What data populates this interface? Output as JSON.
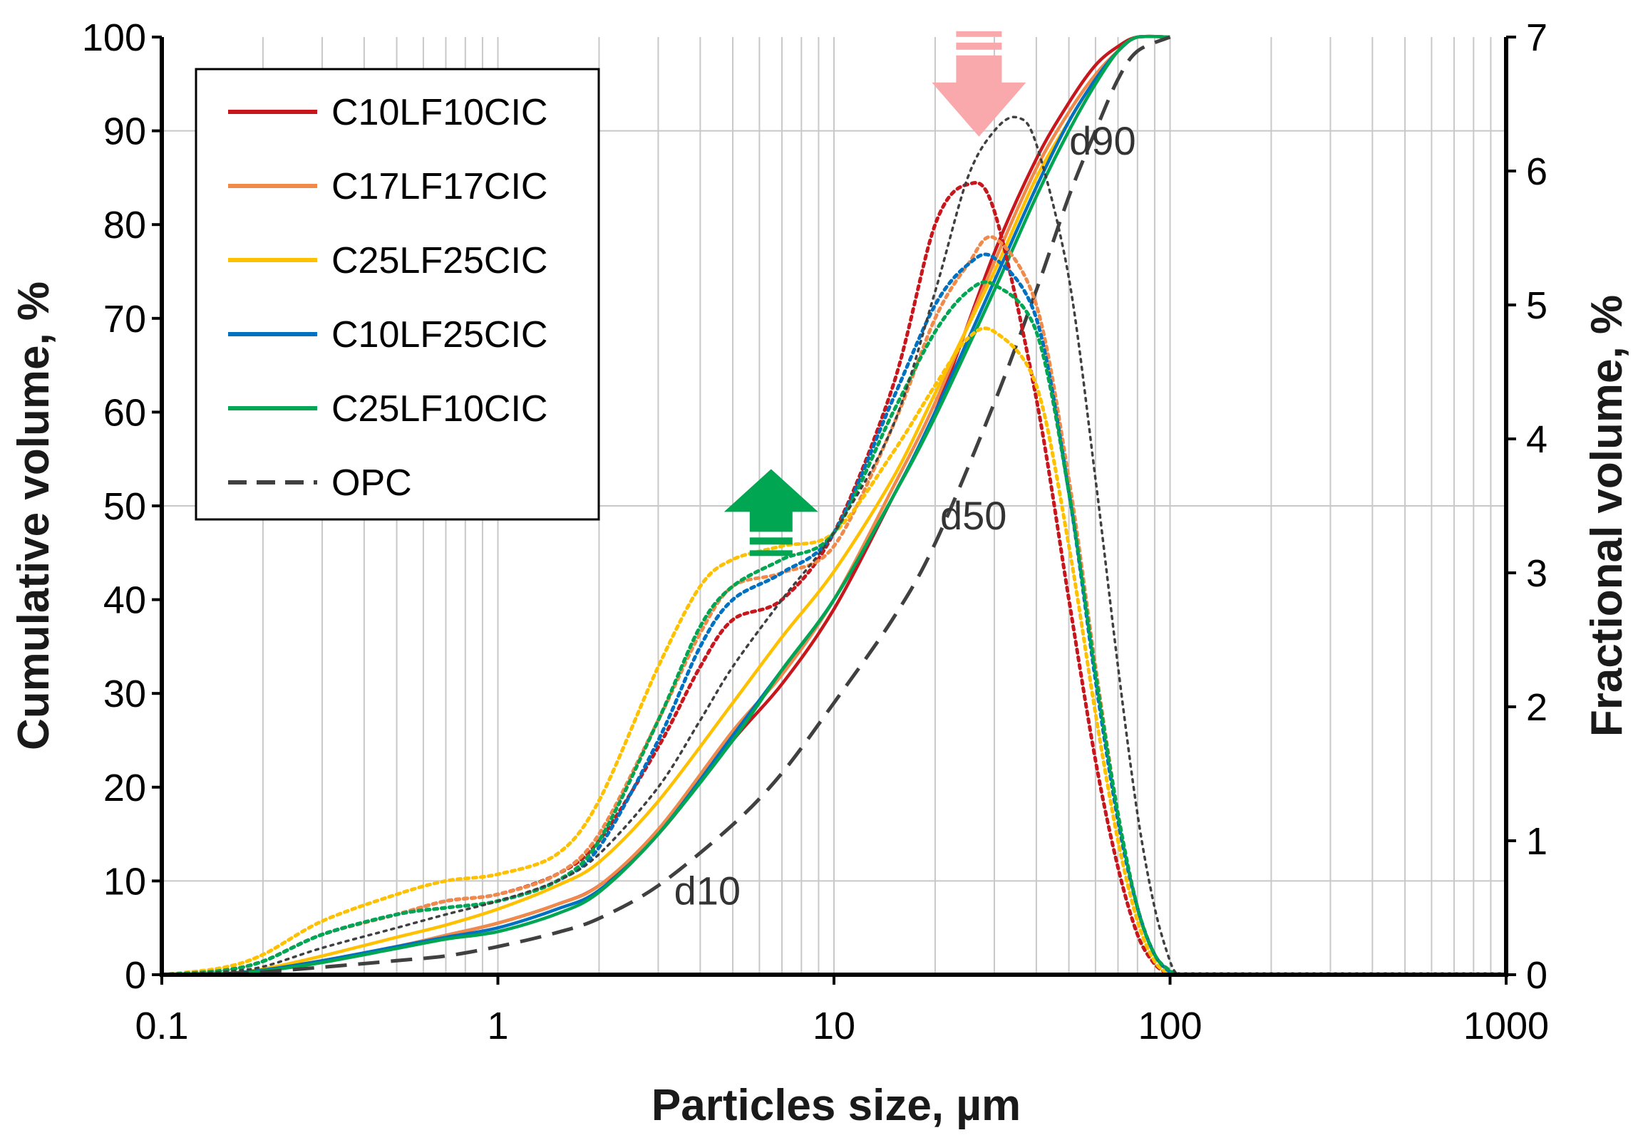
{
  "chart_data": {
    "type": "line",
    "x_scale": "log",
    "xlabel": "Particles size, µm",
    "ylabel_left": "Cumulative volume, %",
    "ylabel_right": "Fractional volume, %",
    "xlim": [
      0.1,
      1000
    ],
    "ylim_left": [
      0,
      100
    ],
    "ylim_right": [
      0,
      7
    ],
    "x_ticks": [
      0.1,
      1,
      10,
      100,
      1000
    ],
    "x_tick_labels": [
      "0.1",
      "1",
      "10",
      "100",
      "1000"
    ],
    "y_left_ticks": [
      0,
      10,
      20,
      30,
      40,
      50,
      60,
      70,
      80,
      90,
      100
    ],
    "y_left_tick_labels": [
      "0",
      "10",
      "20",
      "30",
      "40",
      "50",
      "60",
      "70",
      "80",
      "90",
      "100"
    ],
    "y_right_ticks": [
      0,
      1,
      2,
      3,
      4,
      5,
      6,
      7
    ],
    "y_right_tick_labels": [
      "0",
      "1",
      "2",
      "3",
      "4",
      "5",
      "6",
      "7"
    ],
    "legend": [
      {
        "label": "C10LF10CIC",
        "color": "#c8161d",
        "style": "solid"
      },
      {
        "label": "C17LF17CIC",
        "color": "#f08a4b",
        "style": "solid"
      },
      {
        "label": "C25LF25CIC",
        "color": "#ffc000",
        "style": "solid"
      },
      {
        "label": "C10LF25CIC",
        "color": "#0070c0",
        "style": "solid"
      },
      {
        "label": "C25LF10CIC",
        "color": "#00a651",
        "style": "solid"
      },
      {
        "label": "OPC",
        "color": "#404040",
        "style": "dashed"
      }
    ],
    "legend_position": "top-left",
    "annotations": [
      {
        "text": "d10",
        "x": 4.2,
        "y": 9
      },
      {
        "text": "d50",
        "x": 26,
        "y": 49
      },
      {
        "text": "d90",
        "x": 63,
        "y": 89
      }
    ],
    "arrows": [
      {
        "direction": "up",
        "color": "#00a651",
        "x": 6.5,
        "y": 48
      },
      {
        "direction": "down",
        "color": "#f9a8ac",
        "x": 27,
        "y": 95
      }
    ],
    "series_cumulative": [
      {
        "name": "C10LF10CIC",
        "color": "#c8161d",
        "axis": "left",
        "x": [
          0.1,
          0.15,
          0.2,
          0.3,
          0.5,
          0.7,
          1,
          1.5,
          2,
          3,
          5,
          7,
          10,
          15,
          20,
          30,
          40,
          50,
          60,
          70,
          80,
          100
        ],
        "y": [
          0,
          0.1,
          0.5,
          1.5,
          3,
          4.2,
          5.5,
          7.5,
          9.5,
          15,
          25,
          31,
          39,
          51,
          60,
          77,
          87,
          93,
          97,
          99,
          100,
          100
        ]
      },
      {
        "name": "C17LF17CIC",
        "color": "#f08a4b",
        "axis": "left",
        "x": [
          0.1,
          0.15,
          0.2,
          0.3,
          0.5,
          0.7,
          1,
          1.5,
          2,
          3,
          5,
          7,
          10,
          15,
          20,
          30,
          40,
          50,
          60,
          70,
          80,
          100
        ],
        "y": [
          0,
          0.1,
          0.5,
          1.5,
          3,
          4.2,
          5.5,
          7.5,
          9.5,
          15.5,
          26,
          32,
          40,
          52,
          61,
          76,
          86,
          92,
          96,
          98.5,
          100,
          100
        ]
      },
      {
        "name": "C25LF25CIC",
        "color": "#ffc000",
        "axis": "left",
        "x": [
          0.1,
          0.15,
          0.2,
          0.3,
          0.5,
          0.7,
          1,
          1.5,
          2,
          3,
          5,
          7,
          10,
          15,
          20,
          30,
          40,
          50,
          60,
          70,
          80,
          100
        ],
        "y": [
          0,
          0.1,
          0.6,
          2,
          4,
          5.3,
          7,
          9.5,
          12,
          18.5,
          29,
          36,
          43,
          53,
          62,
          75,
          85,
          91,
          95.5,
          98.5,
          100,
          100
        ]
      },
      {
        "name": "C10LF25CIC",
        "color": "#0070c0",
        "axis": "left",
        "x": [
          0.1,
          0.15,
          0.2,
          0.3,
          0.5,
          0.7,
          1,
          1.5,
          2,
          3,
          5,
          7,
          10,
          15,
          20,
          30,
          40,
          50,
          60,
          70,
          80,
          100
        ],
        "y": [
          0,
          0.1,
          0.5,
          1.5,
          3,
          4,
          5,
          7,
          9,
          15,
          25.5,
          32.5,
          40,
          51,
          60,
          74,
          84,
          91,
          95.5,
          98.5,
          100,
          100
        ]
      },
      {
        "name": "C25LF10CIC",
        "color": "#00a651",
        "axis": "left",
        "x": [
          0.1,
          0.15,
          0.2,
          0.3,
          0.5,
          0.7,
          1,
          1.5,
          2,
          3,
          5,
          7,
          10,
          15,
          20,
          30,
          40,
          50,
          60,
          70,
          80,
          100
        ],
        "y": [
          0,
          0.1,
          0.4,
          1.3,
          2.8,
          3.8,
          4.6,
          6.5,
          8.8,
          15,
          25,
          32.5,
          40,
          51,
          59.5,
          73,
          83,
          90,
          95,
          98.5,
          100,
          100
        ]
      },
      {
        "name": "OPC",
        "color": "#404040",
        "axis": "left",
        "dashed": true,
        "x": [
          0.1,
          0.15,
          0.2,
          0.3,
          0.5,
          0.7,
          1,
          1.5,
          2,
          3,
          5,
          7,
          10,
          15,
          20,
          30,
          40,
          50,
          60,
          70,
          80,
          100
        ],
        "y": [
          0,
          0.1,
          0.3,
          0.8,
          1.5,
          2,
          3,
          4.5,
          6,
          9.5,
          16,
          21.5,
          29,
          38,
          46,
          61,
          73,
          83,
          90,
          95.5,
          98.5,
          100
        ]
      }
    ],
    "series_fractional": [
      {
        "name": "C10LF10CIC",
        "color": "#c8161d",
        "axis": "right",
        "x": [
          0.1,
          0.15,
          0.2,
          0.3,
          0.5,
          0.7,
          1,
          1.5,
          2,
          3,
          4,
          5,
          7,
          10,
          15,
          20,
          25,
          30,
          40,
          50,
          60,
          70,
          80,
          90,
          100
        ],
        "y": [
          0,
          0.03,
          0.1,
          0.3,
          0.45,
          0.55,
          0.6,
          0.75,
          1.0,
          1.7,
          2.3,
          2.65,
          2.8,
          3.3,
          4.4,
          5.6,
          5.9,
          5.7,
          4.3,
          2.8,
          1.6,
          0.8,
          0.3,
          0.08,
          0
        ]
      },
      {
        "name": "C17LF17CIC",
        "color": "#f08a4b",
        "axis": "right",
        "x": [
          0.1,
          0.15,
          0.2,
          0.3,
          0.5,
          0.7,
          1,
          1.5,
          2,
          3,
          4,
          5,
          7,
          10,
          15,
          20,
          25,
          30,
          40,
          50,
          60,
          70,
          80,
          90,
          100,
          105
        ],
        "y": [
          0,
          0.03,
          0.1,
          0.3,
          0.45,
          0.55,
          0.6,
          0.75,
          1.05,
          1.9,
          2.55,
          2.9,
          3.0,
          3.2,
          4.1,
          4.9,
          5.3,
          5.5,
          5.0,
          3.7,
          2.3,
          1.2,
          0.5,
          0.15,
          0.02,
          0
        ]
      },
      {
        "name": "C25LF25CIC",
        "color": "#ffc000",
        "axis": "right",
        "x": [
          0.1,
          0.15,
          0.2,
          0.3,
          0.5,
          0.7,
          1,
          1.5,
          2,
          3,
          4,
          5,
          7,
          10,
          15,
          20,
          25,
          30,
          40,
          50,
          60,
          70,
          80,
          90,
          100
        ],
        "y": [
          0,
          0.05,
          0.15,
          0.4,
          0.6,
          0.7,
          0.75,
          0.9,
          1.3,
          2.3,
          2.9,
          3.1,
          3.2,
          3.3,
          3.9,
          4.4,
          4.75,
          4.8,
          4.4,
          3.2,
          1.95,
          1.0,
          0.4,
          0.1,
          0
        ]
      },
      {
        "name": "C10LF25CIC",
        "color": "#0070c0",
        "axis": "right",
        "x": [
          0.1,
          0.15,
          0.2,
          0.3,
          0.5,
          0.7,
          1,
          1.5,
          2,
          3,
          4,
          5,
          7,
          10,
          15,
          20,
          25,
          30,
          40,
          50,
          60,
          70,
          80,
          90,
          100,
          105
        ],
        "y": [
          0,
          0.03,
          0.1,
          0.3,
          0.45,
          0.5,
          0.55,
          0.7,
          0.95,
          1.75,
          2.45,
          2.8,
          3.0,
          3.3,
          4.3,
          5.0,
          5.3,
          5.35,
          4.9,
          3.6,
          2.2,
          1.15,
          0.5,
          0.15,
          0.02,
          0
        ]
      },
      {
        "name": "C25LF10CIC",
        "color": "#00a651",
        "axis": "right",
        "x": [
          0.1,
          0.15,
          0.2,
          0.3,
          0.5,
          0.7,
          1,
          1.5,
          2,
          3,
          4,
          5,
          7,
          10,
          15,
          20,
          25,
          30,
          40,
          50,
          60,
          70,
          80,
          90,
          100,
          105
        ],
        "y": [
          0,
          0.03,
          0.1,
          0.3,
          0.45,
          0.5,
          0.55,
          0.7,
          1.0,
          1.9,
          2.6,
          2.9,
          3.1,
          3.3,
          4.2,
          4.8,
          5.1,
          5.15,
          4.8,
          3.6,
          2.25,
          1.2,
          0.5,
          0.15,
          0.03,
          0
        ]
      },
      {
        "name": "OPC",
        "color": "#404040",
        "axis": "right",
        "x": [
          0.1,
          0.15,
          0.2,
          0.3,
          0.5,
          0.7,
          1,
          1.5,
          2,
          3,
          4,
          5,
          7,
          10,
          15,
          20,
          25,
          30,
          35,
          40,
          50,
          60,
          70,
          80,
          90,
          100,
          105
        ],
        "y": [
          0,
          0.02,
          0.06,
          0.2,
          0.35,
          0.45,
          0.55,
          0.7,
          0.9,
          1.4,
          1.9,
          2.3,
          2.8,
          3.3,
          4.1,
          5.1,
          5.95,
          6.3,
          6.4,
          6.2,
          5.2,
          3.7,
          2.3,
          1.2,
          0.5,
          0.1,
          0
        ]
      }
    ]
  }
}
